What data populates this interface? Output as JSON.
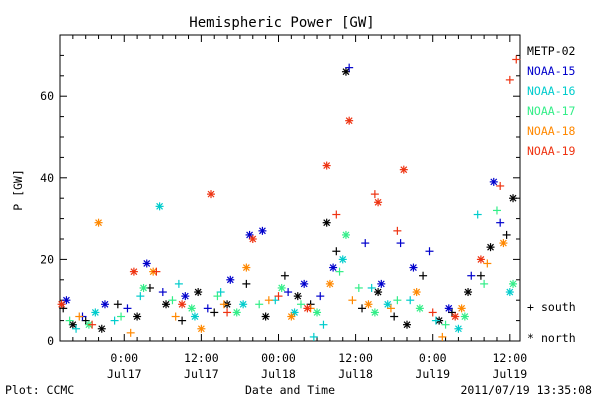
{
  "chart_data": {
    "type": "scatter",
    "title": "Hemispheric Power [GW]",
    "ylabel": "P [GW]",
    "xlabel": "Date and Time",
    "ylim": [
      0,
      75
    ],
    "xlim": [
      "2011-07-16T14:00",
      "2011-07-19T13:35"
    ],
    "y_ticks": [
      0,
      20,
      40,
      60
    ],
    "x_ticks": [
      {
        "time": "2011-07-17T00:00",
        "label1": "0:00",
        "label2": "Jul17"
      },
      {
        "time": "2011-07-17T12:00",
        "label1": "12:00",
        "label2": "Jul17"
      },
      {
        "time": "2011-07-18T00:00",
        "label1": "00:00",
        "label2": "Jul18"
      },
      {
        "time": "2011-07-18T12:00",
        "label1": "12:00",
        "label2": "Jul18"
      },
      {
        "time": "2011-07-19T00:00",
        "label1": "0:00",
        "label2": "Jul19"
      },
      {
        "time": "2011-07-19T12:00",
        "label1": "12:00",
        "label2": "Jul19"
      }
    ],
    "grid": false,
    "legend_position": "right",
    "series": [
      {
        "name": "METP-02",
        "color": "#000000",
        "points": [
          [
            "2011-07-16T14:30",
            8,
            "s"
          ],
          [
            "2011-07-16T16:00",
            4,
            "n"
          ],
          [
            "2011-07-16T18:00",
            5,
            "s"
          ],
          [
            "2011-07-16T20:30",
            3,
            "n"
          ],
          [
            "2011-07-16T23:00",
            9,
            "s"
          ],
          [
            "2011-07-17T02:00",
            6,
            "n"
          ],
          [
            "2011-07-17T04:00",
            13,
            "s"
          ],
          [
            "2011-07-17T06:30",
            9,
            "n"
          ],
          [
            "2011-07-17T09:00",
            5,
            "s"
          ],
          [
            "2011-07-17T11:30",
            12,
            "n"
          ],
          [
            "2011-07-17T14:00",
            7,
            "s"
          ],
          [
            "2011-07-17T16:00",
            9,
            "n"
          ],
          [
            "2011-07-17T19:00",
            14,
            "s"
          ],
          [
            "2011-07-17T22:00",
            6,
            "n"
          ],
          [
            "2011-07-18T01:00",
            16,
            "s"
          ],
          [
            "2011-07-18T03:00",
            11,
            "n"
          ],
          [
            "2011-07-18T05:00",
            9,
            "s"
          ],
          [
            "2011-07-18T07:30",
            29,
            "n"
          ],
          [
            "2011-07-18T09:00",
            22,
            "s"
          ],
          [
            "2011-07-18T10:30",
            66,
            "n"
          ],
          [
            "2011-07-18T13:00",
            8,
            "s"
          ],
          [
            "2011-07-18T15:30",
            12,
            "n"
          ],
          [
            "2011-07-18T18:00",
            6,
            "s"
          ],
          [
            "2011-07-18T20:00",
            4,
            "n"
          ],
          [
            "2011-07-18T22:30",
            16,
            "s"
          ],
          [
            "2011-07-19T01:00",
            5,
            "n"
          ],
          [
            "2011-07-19T03:00",
            7,
            "s"
          ],
          [
            "2011-07-19T05:30",
            12,
            "n"
          ],
          [
            "2011-07-19T07:30",
            16,
            "s"
          ],
          [
            "2011-07-19T09:00",
            23,
            "n"
          ],
          [
            "2011-07-19T11:30",
            26,
            "s"
          ],
          [
            "2011-07-19T12:30",
            35,
            "n"
          ]
        ]
      },
      {
        "name": "NOAA-15",
        "color": "#0000cc",
        "points": [
          [
            "2011-07-16T15:00",
            10,
            "n"
          ],
          [
            "2011-07-16T17:30",
            6,
            "s"
          ],
          [
            "2011-07-16T21:00",
            9,
            "n"
          ],
          [
            "2011-07-17T00:30",
            8,
            "s"
          ],
          [
            "2011-07-17T03:30",
            19,
            "n"
          ],
          [
            "2011-07-17T06:00",
            12,
            "s"
          ],
          [
            "2011-07-17T09:30",
            11,
            "n"
          ],
          [
            "2011-07-17T13:00",
            8,
            "s"
          ],
          [
            "2011-07-17T16:30",
            15,
            "n"
          ],
          [
            "2011-07-17T19:30",
            26,
            "n"
          ],
          [
            "2011-07-17T21:30",
            27,
            "n"
          ],
          [
            "2011-07-18T01:30",
            12,
            "s"
          ],
          [
            "2011-07-18T04:00",
            14,
            "n"
          ],
          [
            "2011-07-18T06:30",
            11,
            "s"
          ],
          [
            "2011-07-18T08:30",
            18,
            "n"
          ],
          [
            "2011-07-18T11:00",
            67,
            "s"
          ],
          [
            "2011-07-18T13:30",
            24,
            "s"
          ],
          [
            "2011-07-18T16:00",
            14,
            "n"
          ],
          [
            "2011-07-18T19:00",
            24,
            "s"
          ],
          [
            "2011-07-18T21:00",
            18,
            "n"
          ],
          [
            "2011-07-18T23:30",
            22,
            "s"
          ],
          [
            "2011-07-19T02:30",
            8,
            "n"
          ],
          [
            "2011-07-19T06:00",
            16,
            "s"
          ],
          [
            "2011-07-19T09:30",
            39,
            "n"
          ],
          [
            "2011-07-19T10:30",
            29,
            "s"
          ]
        ]
      },
      {
        "name": "NOAA-16",
        "color": "#00cccc",
        "points": [
          [
            "2011-07-16T16:30",
            3,
            "s"
          ],
          [
            "2011-07-16T19:30",
            7,
            "n"
          ],
          [
            "2011-07-16T22:30",
            5,
            "s"
          ],
          [
            "2011-07-17T02:30",
            11,
            "s"
          ],
          [
            "2011-07-17T05:30",
            33,
            "n"
          ],
          [
            "2011-07-17T08:30",
            14,
            "s"
          ],
          [
            "2011-07-17T11:00",
            6,
            "n"
          ],
          [
            "2011-07-17T15:00",
            12,
            "s"
          ],
          [
            "2011-07-17T18:30",
            9,
            "n"
          ],
          [
            "2011-07-17T23:30",
            10,
            "s"
          ],
          [
            "2011-07-18T02:30",
            7,
            "n"
          ],
          [
            "2011-07-18T05:30",
            1,
            "s"
          ],
          [
            "2011-07-18T07:00",
            4,
            "s"
          ],
          [
            "2011-07-18T10:00",
            20,
            "n"
          ],
          [
            "2011-07-18T14:30",
            13,
            "s"
          ],
          [
            "2011-07-18T17:00",
            9,
            "n"
          ],
          [
            "2011-07-18T20:30",
            10,
            "s"
          ],
          [
            "2011-07-19T00:30",
            5,
            "s"
          ],
          [
            "2011-07-19T04:00",
            3,
            "n"
          ],
          [
            "2011-07-19T07:00",
            31,
            "s"
          ],
          [
            "2011-07-19T12:00",
            12,
            "n"
          ]
        ]
      },
      {
        "name": "NOAA-17",
        "color": "#33ee88",
        "points": [
          [
            "2011-07-16T15:30",
            5,
            "s"
          ],
          [
            "2011-07-16T18:30",
            4,
            "n"
          ],
          [
            "2011-07-16T23:30",
            6,
            "s"
          ],
          [
            "2011-07-17T03:00",
            13,
            "n"
          ],
          [
            "2011-07-17T07:30",
            10,
            "s"
          ],
          [
            "2011-07-17T10:30",
            8,
            "n"
          ],
          [
            "2011-07-17T14:30",
            11,
            "s"
          ],
          [
            "2011-07-17T17:30",
            7,
            "n"
          ],
          [
            "2011-07-17T21:00",
            9,
            "s"
          ],
          [
            "2011-07-18T00:30",
            13,
            "n"
          ],
          [
            "2011-07-18T03:30",
            9,
            "s"
          ],
          [
            "2011-07-18T06:00",
            7,
            "n"
          ],
          [
            "2011-07-18T09:30",
            17,
            "s"
          ],
          [
            "2011-07-18T10:30",
            26,
            "n"
          ],
          [
            "2011-07-18T12:30",
            13,
            "s"
          ],
          [
            "2011-07-18T15:00",
            7,
            "n"
          ],
          [
            "2011-07-18T18:30",
            10,
            "s"
          ],
          [
            "2011-07-18T22:00",
            8,
            "n"
          ],
          [
            "2011-07-19T02:00",
            4,
            "s"
          ],
          [
            "2011-07-19T05:00",
            6,
            "n"
          ],
          [
            "2011-07-19T08:00",
            14,
            "s"
          ],
          [
            "2011-07-19T10:00",
            32,
            "s"
          ],
          [
            "2011-07-19T12:30",
            14,
            "n"
          ]
        ]
      },
      {
        "name": "NOAA-18",
        "color": "#ff8800",
        "points": [
          [
            "2011-07-16T17:00",
            6,
            "s"
          ],
          [
            "2011-07-16T20:00",
            29,
            "n"
          ],
          [
            "2011-07-17T01:00",
            2,
            "s"
          ],
          [
            "2011-07-17T04:30",
            17,
            "n"
          ],
          [
            "2011-07-17T08:00",
            6,
            "s"
          ],
          [
            "2011-07-17T12:00",
            3,
            "n"
          ],
          [
            "2011-07-17T15:30",
            9,
            "s"
          ],
          [
            "2011-07-17T19:00",
            18,
            "n"
          ],
          [
            "2011-07-17T22:30",
            10,
            "s"
          ],
          [
            "2011-07-18T02:00",
            6,
            "n"
          ],
          [
            "2011-07-18T05:00",
            8,
            "s"
          ],
          [
            "2011-07-18T08:00",
            14,
            "n"
          ],
          [
            "2011-07-18T11:30",
            10,
            "s"
          ],
          [
            "2011-07-18T14:00",
            9,
            "n"
          ],
          [
            "2011-07-18T17:30",
            8,
            "s"
          ],
          [
            "2011-07-18T21:30",
            12,
            "n"
          ],
          [
            "2011-07-19T01:30",
            1,
            "s"
          ],
          [
            "2011-07-19T04:30",
            8,
            "n"
          ],
          [
            "2011-07-19T08:30",
            19,
            "s"
          ],
          [
            "2011-07-19T11:00",
            24,
            "n"
          ]
        ]
      },
      {
        "name": "NOAA-19",
        "color": "#ee3311",
        "points": [
          [
            "2011-07-16T14:15",
            9,
            "n"
          ],
          [
            "2011-07-16T19:00",
            4,
            "s"
          ],
          [
            "2011-07-17T01:30",
            17,
            "n"
          ],
          [
            "2011-07-17T05:00",
            17,
            "s"
          ],
          [
            "2011-07-17T09:00",
            9,
            "n"
          ],
          [
            "2011-07-17T13:30",
            36,
            "n"
          ],
          [
            "2011-07-17T16:00",
            7,
            "s"
          ],
          [
            "2011-07-17T20:00",
            25,
            "n"
          ],
          [
            "2011-07-18T00:00",
            11,
            "s"
          ],
          [
            "2011-07-18T04:30",
            8,
            "n"
          ],
          [
            "2011-07-18T07:30",
            43,
            "n"
          ],
          [
            "2011-07-18T09:00",
            31,
            "s"
          ],
          [
            "2011-07-18T11:00",
            54,
            "n"
          ],
          [
            "2011-07-18T15:00",
            36,
            "s"
          ],
          [
            "2011-07-18T15:30",
            34,
            "n"
          ],
          [
            "2011-07-18T18:30",
            27,
            "s"
          ],
          [
            "2011-07-18T19:30",
            42,
            "n"
          ],
          [
            "2011-07-19T00:00",
            7,
            "s"
          ],
          [
            "2011-07-19T03:30",
            6,
            "n"
          ],
          [
            "2011-07-19T07:30",
            20,
            "n"
          ],
          [
            "2011-07-19T10:30",
            38,
            "s"
          ],
          [
            "2011-07-19T12:00",
            64,
            "s"
          ],
          [
            "2011-07-19T13:00",
            69,
            "s"
          ]
        ]
      }
    ]
  },
  "legend": {
    "south_label": "south",
    "north_label": "north"
  },
  "footer": {
    "plot_label": "Plot: CCMC",
    "timestamp": "2011/07/19 13:35:08"
  }
}
